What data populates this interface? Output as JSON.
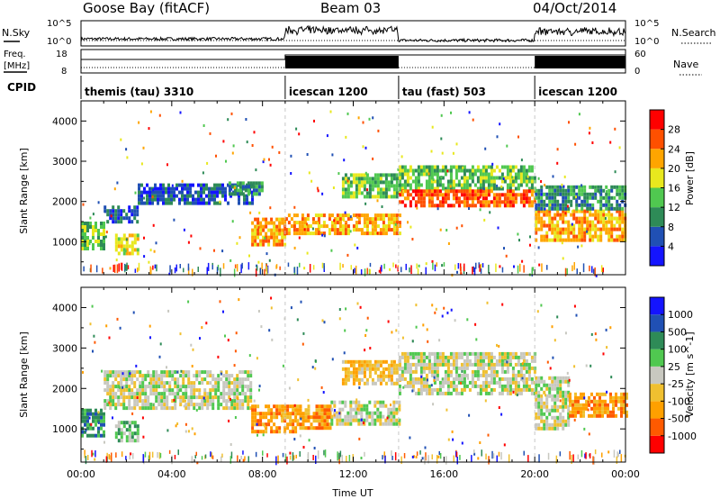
{
  "header": {
    "site": "Goose Bay (fitACF)",
    "beam": "Beam 03",
    "date": "04/Oct/2014"
  },
  "noise_panel": {
    "left_label": "N.Sky",
    "right_label": "N.Search",
    "left_ticks": [
      "10^5",
      "10^0"
    ],
    "right_ticks": [
      "10^5",
      "10^0"
    ]
  },
  "freq_panel": {
    "left_label_1": "Freq.",
    "left_label_2": "[MHz]",
    "right_label": "Nave",
    "left_ticks": [
      "18",
      "8"
    ],
    "right_ticks": [
      "60",
      "0"
    ]
  },
  "cpid": {
    "label": "CPID",
    "segments": [
      {
        "name": "themis (tau) 3310",
        "start": 0,
        "end": 9
      },
      {
        "name": "icescan 1200",
        "start": 9,
        "end": 14
      },
      {
        "name": "tau (fast) 503",
        "start": 14,
        "end": 20
      },
      {
        "name": "icescan 1200",
        "start": 20,
        "end": 24
      }
    ]
  },
  "colors": {
    "power_scale": [
      "#1414ff",
      "#2050b4",
      "#2e8b57",
      "#50c850",
      "#e8e81e",
      "#ffa500",
      "#ff5000",
      "#ff0000"
    ],
    "velocity_scale": [
      "#ff0000",
      "#ff5a00",
      "#ffa000",
      "#f0c030",
      "#c8c8c0",
      "#50c850",
      "#2e8b57",
      "#2050b4",
      "#1414ff"
    ]
  },
  "chart_data": [
    {
      "type": "heatmap",
      "panel": "power",
      "ylabel": "Slant Range [km]",
      "ylim": [
        180,
        4500
      ],
      "xlim": [
        0,
        24
      ],
      "yticks": [
        "1000",
        "2000",
        "3000",
        "4000"
      ],
      "colorbar_label": "Power [dB]",
      "colorbar_ticks": [
        "4",
        "8",
        "12",
        "16",
        "20",
        "24",
        "28"
      ],
      "regions": [
        {
          "t0": 0.0,
          "t1": 1.0,
          "r0": 800,
          "r1": 1500,
          "level": 3
        },
        {
          "t0": 1.0,
          "t1": 2.5,
          "r0": 1500,
          "r1": 1900,
          "level": 1
        },
        {
          "t0": 2.5,
          "t1": 7.5,
          "r0": 1950,
          "r1": 2450,
          "level": 1
        },
        {
          "t0": 6.5,
          "t1": 8.0,
          "r0": 2150,
          "r1": 2500,
          "level": 2
        },
        {
          "t0": 1.5,
          "t1": 2.5,
          "r0": 700,
          "r1": 1200,
          "level": 4
        },
        {
          "t0": 7.5,
          "t1": 9.0,
          "r0": 900,
          "r1": 1600,
          "level": 5
        },
        {
          "t0": 9.0,
          "t1": 14.0,
          "r0": 1200,
          "r1": 1700,
          "level": 5
        },
        {
          "t0": 11.5,
          "t1": 14.0,
          "r0": 2100,
          "r1": 2700,
          "level": 3
        },
        {
          "t0": 14.0,
          "t1": 20.0,
          "r0": 2300,
          "r1": 2900,
          "level": 3
        },
        {
          "t0": 14.0,
          "t1": 20.0,
          "r0": 1900,
          "r1": 2300,
          "level": 6
        },
        {
          "t0": 20.0,
          "t1": 24.0,
          "r0": 1000,
          "r1": 1800,
          "level": 5
        },
        {
          "t0": 20.0,
          "t1": 24.0,
          "r0": 1800,
          "r1": 2400,
          "level": 2
        }
      ]
    },
    {
      "type": "heatmap",
      "panel": "velocity",
      "xlabel": "Time UT",
      "ylabel": "Slant Range [km]",
      "ylim": [
        180,
        4500
      ],
      "xlim": [
        0,
        24
      ],
      "xticks": [
        "00:00",
        "04:00",
        "08:00",
        "12:00",
        "16:00",
        "20:00",
        "00:00"
      ],
      "yticks": [
        "1000",
        "2000",
        "3000",
        "4000"
      ],
      "colorbar_label": "Velocity [m s^-1]",
      "colorbar_ticks": [
        "-1000",
        "-500",
        "-100",
        "-25",
        "25",
        "100",
        "500",
        "1000"
      ],
      "regions": [
        {
          "t0": 0.0,
          "t1": 1.0,
          "r0": 800,
          "r1": 1500,
          "level": 6
        },
        {
          "t0": 1.0,
          "t1": 7.5,
          "r0": 1500,
          "r1": 2450,
          "level": 4
        },
        {
          "t0": 1.5,
          "t1": 2.5,
          "r0": 700,
          "r1": 1200,
          "level": 5
        },
        {
          "t0": 7.5,
          "t1": 9.5,
          "r0": 900,
          "r1": 1600,
          "level": 2
        },
        {
          "t0": 9.5,
          "t1": 11.0,
          "r0": 1000,
          "r1": 1600,
          "level": 2
        },
        {
          "t0": 11.0,
          "t1": 14.0,
          "r0": 1100,
          "r1": 1700,
          "level": 4
        },
        {
          "t0": 11.5,
          "t1": 14.0,
          "r0": 2100,
          "r1": 2700,
          "level": 3
        },
        {
          "t0": 14.0,
          "t1": 20.0,
          "r0": 1900,
          "r1": 2900,
          "level": 4
        },
        {
          "t0": 20.0,
          "t1": 21.5,
          "r0": 1000,
          "r1": 2300,
          "level": 4
        },
        {
          "t0": 21.5,
          "t1": 24.0,
          "r0": 1300,
          "r1": 1900,
          "level": 2
        }
      ]
    }
  ],
  "axis": {
    "xlabel": "Time UT"
  }
}
